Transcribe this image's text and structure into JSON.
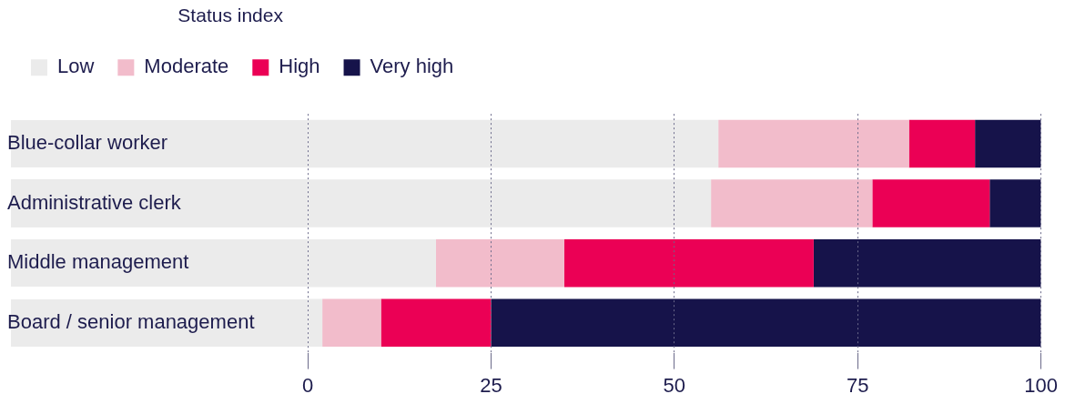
{
  "chart_data": {
    "type": "bar",
    "orientation": "horizontal",
    "stacked": true,
    "legend_title": "Status index",
    "legend": "top left",
    "grid": "x",
    "categories": [
      "Blue-collar worker",
      "Administrative clerk",
      "Middle management",
      "Board / senior management"
    ],
    "series": [
      {
        "name": "Low",
        "color": "#ebebeb",
        "values": [
          56,
          55,
          17.5,
          2
        ]
      },
      {
        "name": "Moderate",
        "color": "#f2bccb",
        "values": [
          26,
          22,
          17.5,
          8
        ]
      },
      {
        "name": "High",
        "color": "#eb0055",
        "values": [
          9,
          16,
          34,
          15
        ]
      },
      {
        "name": "Very high",
        "color": "#16134a",
        "values": [
          9,
          7,
          31,
          75
        ]
      }
    ],
    "xlim": [
      0,
      100
    ],
    "xticks": [
      0,
      25,
      50,
      75,
      100
    ]
  }
}
